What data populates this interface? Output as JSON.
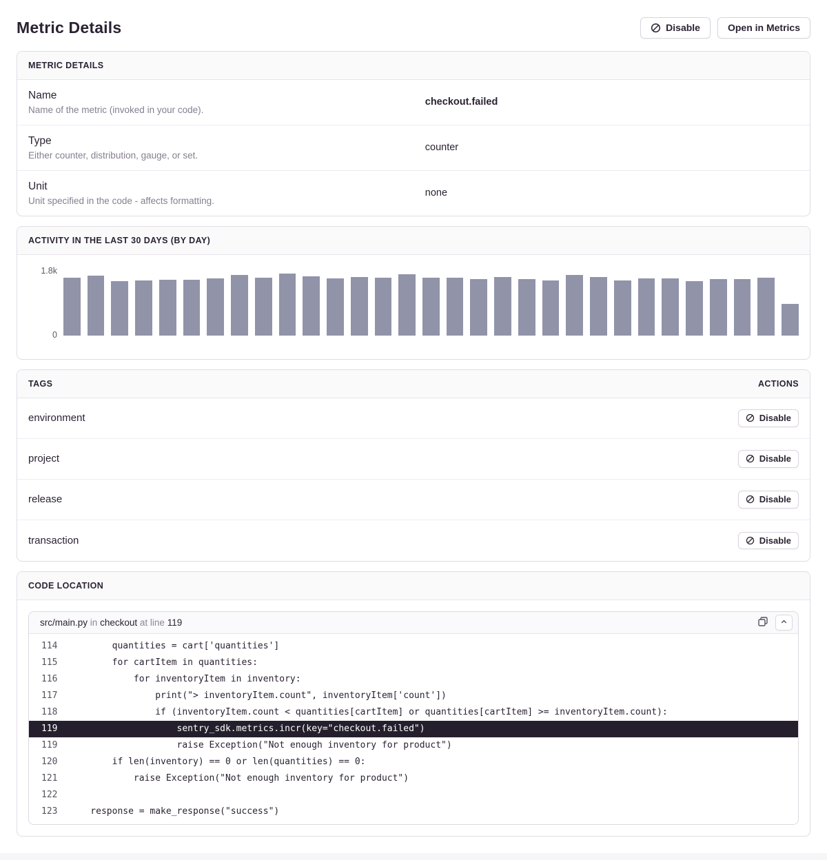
{
  "page": {
    "title": "Metric Details",
    "disable_button": "Disable",
    "open_in_metrics_button": "Open in Metrics"
  },
  "details_panel": {
    "header": "METRIC DETAILS",
    "rows": [
      {
        "label": "Name",
        "description": "Name of the metric (invoked in your code).",
        "value": "checkout.failed",
        "bold": true
      },
      {
        "label": "Type",
        "description": "Either counter, distribution, gauge, or set.",
        "value": "counter",
        "bold": false
      },
      {
        "label": "Unit",
        "description": "Unit specified in the code - affects formatting.",
        "value": "none",
        "bold": false
      }
    ]
  },
  "activity_panel": {
    "header": "ACTIVITY IN THE LAST 30 DAYS (BY DAY)"
  },
  "chart_data": {
    "type": "bar",
    "title": "Activity in the last 30 days (by day)",
    "xlabel": "",
    "ylabel": "",
    "ylim": [
      0,
      1800
    ],
    "y_tick_labels": {
      "max": "1.8k",
      "min": "0"
    },
    "bar_color": "#9193a9",
    "grid": false,
    "legend": false,
    "values": [
      1580,
      1640,
      1490,
      1510,
      1530,
      1530,
      1560,
      1670,
      1590,
      1700,
      1620,
      1570,
      1610,
      1580,
      1680,
      1590,
      1580,
      1540,
      1600,
      1550,
      1510,
      1660,
      1600,
      1520,
      1560,
      1560,
      1500,
      1550,
      1540,
      1580,
      860
    ]
  },
  "tags_panel": {
    "header": "TAGS",
    "actions_header": "ACTIONS",
    "disable_label": "Disable",
    "rows": [
      "environment",
      "project",
      "release",
      "transaction"
    ]
  },
  "code_panel": {
    "header": "CODE LOCATION",
    "file": "src/main.py",
    "in_word": "in",
    "function": "checkout",
    "at_line_word": "at line",
    "line_number": "119",
    "lines": [
      {
        "n": "114",
        "code": "        quantities = cart['quantities']",
        "highlight": false
      },
      {
        "n": "115",
        "code": "        for cartItem in quantities:",
        "highlight": false
      },
      {
        "n": "116",
        "code": "            for inventoryItem in inventory:",
        "highlight": false
      },
      {
        "n": "117",
        "code": "                print(\"> inventoryItem.count\", inventoryItem['count'])",
        "highlight": false
      },
      {
        "n": "118",
        "code": "                if (inventoryItem.count < quantities[cartItem] or quantities[cartItem] >= inventoryItem.count):",
        "highlight": false
      },
      {
        "n": "119",
        "code": "                    sentry_sdk.metrics.incr(key=\"checkout.failed\")",
        "highlight": true
      },
      {
        "n": "119",
        "code": "                    raise Exception(\"Not enough inventory for product\")",
        "highlight": false
      },
      {
        "n": "120",
        "code": "        if len(inventory) == 0 or len(quantities) == 0:",
        "highlight": false
      },
      {
        "n": "121",
        "code": "            raise Exception(\"Not enough inventory for product\")",
        "highlight": false
      },
      {
        "n": "122",
        "code": "",
        "highlight": false
      },
      {
        "n": "123",
        "code": "    response = make_response(\"success\")",
        "highlight": false
      }
    ]
  }
}
